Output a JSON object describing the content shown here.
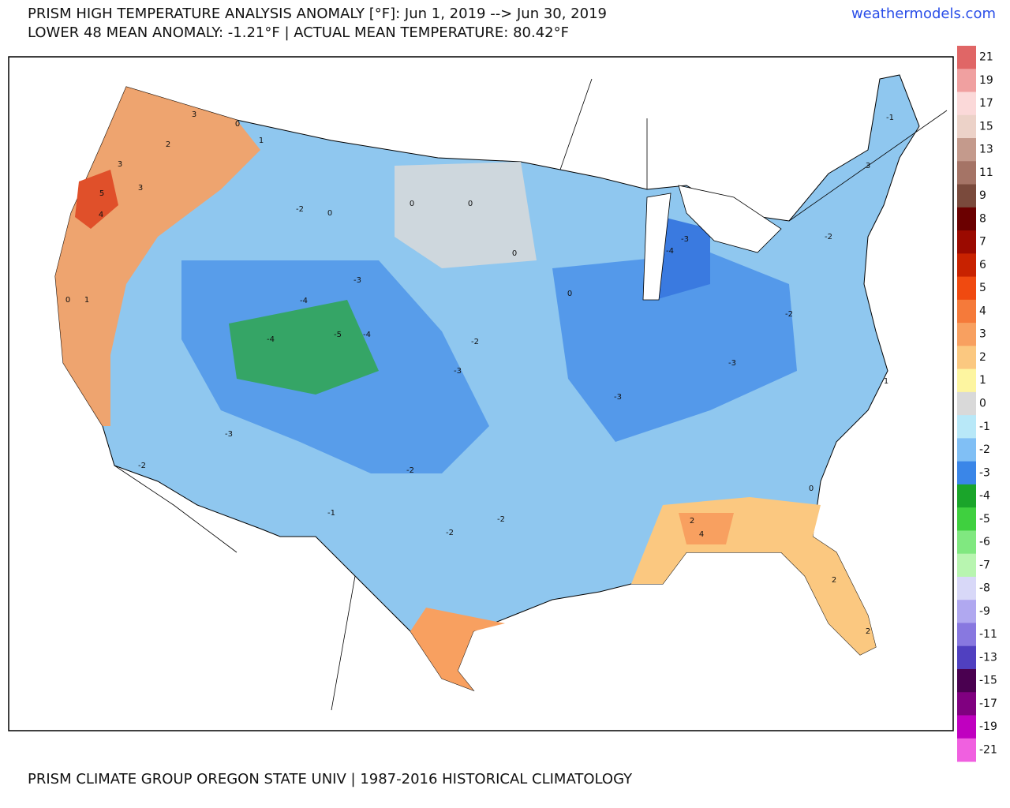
{
  "header": {
    "title": "PRISM HIGH TEMPERATURE ANALYSIS ANOMALY [°F]: Jun 1, 2019 --> Jun 30, 2019",
    "subtitle": "LOWER 48 MEAN ANOMALY: -1.21°F | ACTUAL MEAN TEMPERATURE: 80.42°F",
    "site": "weathermodels.com"
  },
  "colorbar": {
    "labels": [
      21,
      19,
      17,
      15,
      13,
      11,
      9,
      8,
      7,
      6,
      5,
      4,
      3,
      2,
      1,
      0,
      -1,
      -2,
      -3,
      -4,
      -5,
      -6,
      -7,
      -8,
      -9,
      -11,
      -13,
      -15,
      -17,
      -19,
      -21
    ],
    "colors": [
      "#e06666",
      "#f0a0a0",
      "#fbd9d9",
      "#ecd2c8",
      "#c49a8c",
      "#a57466",
      "#7a4a3c",
      "#6b0000",
      "#9b0a00",
      "#c82200",
      "#f04a10",
      "#f57a3a",
      "#f8a060",
      "#fbc880",
      "#fdf5a0",
      "#d9d9d9",
      "#b8e8f8",
      "#80bff5",
      "#3a86e8",
      "#1aa52a",
      "#3fd03f",
      "#80e880",
      "#b8f5b0",
      "#d8d8f8",
      "#b0a8f0",
      "#8878e0",
      "#5040c0",
      "#4a0050",
      "#800080",
      "#c000c0",
      "#f060e0"
    ]
  },
  "map_labels": [
    3,
    5,
    4,
    3,
    3,
    2,
    0,
    1,
    -2,
    0,
    -3,
    -4,
    -4,
    -5,
    -4,
    -3,
    -2,
    0,
    0,
    0,
    0,
    -4,
    -3,
    -3,
    -3,
    -2,
    -2,
    -1,
    3,
    2,
    4,
    2,
    2,
    -2,
    -2,
    -2,
    -1,
    -3,
    -2,
    0,
    1,
    1,
    0
  ],
  "footer": "PRISM CLIMATE GROUP OREGON STATE UNIV | 1987-2016 HISTORICAL CLIMATOLOGY"
}
